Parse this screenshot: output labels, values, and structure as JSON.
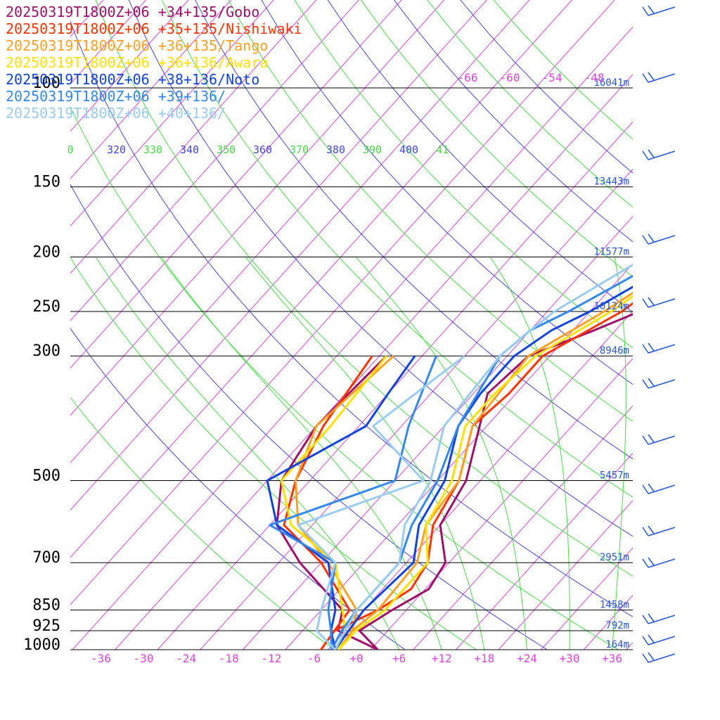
{
  "chart_data": {
    "type": "line",
    "title": "",
    "xlabel": "",
    "ylabel": "",
    "pressure_range": [
      1000,
      70
    ],
    "temperature_range": [
      -42,
      40
    ],
    "pressure_levels": [
      {
        "p": 100,
        "label": "100",
        "height": "16041m"
      },
      {
        "p": 150,
        "label": "150",
        "height": "13443m"
      },
      {
        "p": 200,
        "label": "200",
        "height": "11577m"
      },
      {
        "p": 250,
        "label": "250",
        "height": "10124m"
      },
      {
        "p": 300,
        "label": "300",
        "height": "8946m"
      },
      {
        "p": 500,
        "label": "500",
        "height": "5457m"
      },
      {
        "p": 700,
        "label": "700",
        "height": "2951m"
      },
      {
        "p": 850,
        "label": "850",
        "height": "1458m"
      },
      {
        "p": 925,
        "label": "925",
        "height": "792m"
      },
      {
        "p": 1000,
        "label": "1000",
        "height": "164m"
      }
    ],
    "temperature_ticks": [
      {
        "t": -36,
        "label": "-36"
      },
      {
        "t": -30,
        "label": "-30"
      },
      {
        "t": -24,
        "label": "-24"
      },
      {
        "t": -18,
        "label": "-18"
      },
      {
        "t": -12,
        "label": "-12"
      },
      {
        "t": -6,
        "label": "-6"
      },
      {
        "t": 0,
        "label": "+0"
      },
      {
        "t": 6,
        "label": "+6"
      },
      {
        "t": 12,
        "label": "+12"
      },
      {
        "t": 18,
        "label": "+18"
      },
      {
        "t": 24,
        "label": "+24"
      },
      {
        "t": 30,
        "label": "+30"
      },
      {
        "t": 36,
        "label": "+36"
      }
    ],
    "upper_temperature_labels": [
      "-66",
      "-60",
      "-54",
      "-48"
    ],
    "theta_labels": [
      {
        "v": "0",
        "color": "#44dd44"
      },
      {
        "v": "320",
        "color": "#4444dd"
      },
      {
        "v": "330",
        "color": "#44dd44"
      },
      {
        "v": "340",
        "color": "#4444dd"
      },
      {
        "v": "350",
        "color": "#44dd44"
      },
      {
        "v": "360",
        "color": "#4444dd"
      },
      {
        "v": "370",
        "color": "#44dd44"
      },
      {
        "v": "380",
        "color": "#4444dd"
      },
      {
        "v": "390",
        "color": "#44dd44"
      },
      {
        "v": "400",
        "color": "#4444dd"
      },
      {
        "v": "41",
        "color": "#44dd44"
      }
    ],
    "series": [
      {
        "name": "20250319T1800Z+06 +34+135/Gobo",
        "color": "#a0106a",
        "temperature": [
          [
            1000,
            3
          ],
          [
            925,
            -2
          ],
          [
            850,
            0
          ],
          [
            780,
            2.5
          ],
          [
            700,
            1.5
          ],
          [
            600,
            -4
          ],
          [
            500,
            -6
          ],
          [
            400,
            -11
          ],
          [
            350,
            -14
          ],
          [
            300,
            -13
          ],
          [
            270,
            -7
          ],
          [
            250,
            -3
          ],
          [
            200,
            -2
          ],
          [
            160,
            -2
          ],
          [
            150,
            0.5
          ],
          [
            100,
            11.5
          ],
          [
            70,
            19
          ],
          [
            65,
            21
          ]
        ],
        "dewpoint": [
          [
            1000,
            3
          ],
          [
            925,
            -5
          ],
          [
            850,
            -7
          ],
          [
            700,
            -19
          ],
          [
            600,
            -27
          ],
          [
            500,
            -32
          ],
          [
            400,
            -34
          ],
          [
            300,
            -33
          ]
        ]
      },
      {
        "name": "20250319T1800Z+06 +35+135/Nishiwaki",
        "color": "#ff3300",
        "temperature": [
          [
            1000,
            -5
          ],
          [
            925,
            -5.5
          ],
          [
            850,
            -2
          ],
          [
            780,
            0
          ],
          [
            700,
            -1
          ],
          [
            600,
            -5
          ],
          [
            500,
            -7
          ],
          [
            400,
            -12
          ],
          [
            350,
            -11
          ],
          [
            300,
            -11
          ],
          [
            250,
            -5.5
          ],
          [
            200,
            -2
          ],
          [
            150,
            3
          ],
          [
            100,
            13
          ],
          [
            70,
            22
          ],
          [
            65,
            25
          ]
        ],
        "dewpoint": [
          [
            1000,
            -5
          ],
          [
            925,
            -5.5
          ],
          [
            850,
            -6
          ],
          [
            700,
            -16
          ],
          [
            600,
            -26
          ],
          [
            500,
            -30
          ],
          [
            400,
            -33
          ],
          [
            300,
            -35
          ]
        ]
      },
      {
        "name": "20250319T1800Z+06 +36+135/Tango",
        "color": "#ffa020",
        "temperature": [
          [
            1000,
            -2.5
          ],
          [
            925,
            -3
          ],
          [
            850,
            -2
          ],
          [
            700,
            -2.5
          ],
          [
            600,
            -6
          ],
          [
            500,
            -7
          ],
          [
            400,
            -12
          ],
          [
            300,
            -13
          ],
          [
            250,
            -8
          ],
          [
            200,
            -3
          ],
          [
            150,
            2
          ],
          [
            100,
            14
          ],
          [
            70,
            24
          ]
        ],
        "dewpoint": [
          [
            1000,
            -2.5
          ],
          [
            925,
            -3
          ],
          [
            850,
            -5
          ],
          [
            700,
            -15
          ],
          [
            600,
            -24
          ],
          [
            500,
            -30
          ],
          [
            400,
            -34
          ],
          [
            300,
            -32
          ]
        ]
      },
      {
        "name": "20250319T1800Z+06 +36+136/Awara",
        "color": "#ffe000",
        "temperature": [
          [
            1000,
            -2.5
          ],
          [
            925,
            -2.5
          ],
          [
            850,
            -1
          ],
          [
            700,
            -1
          ],
          [
            600,
            -6
          ],
          [
            500,
            -8
          ],
          [
            400,
            -13
          ],
          [
            350,
            -13
          ],
          [
            300,
            -12
          ],
          [
            250,
            -7
          ],
          [
            200,
            -3
          ],
          [
            150,
            1
          ],
          [
            100,
            15
          ],
          [
            70,
            26
          ]
        ],
        "dewpoint": [
          [
            1000,
            -2.5
          ],
          [
            925,
            -4
          ],
          [
            850,
            -7
          ],
          [
            700,
            -14
          ],
          [
            600,
            -25
          ],
          [
            500,
            -32
          ],
          [
            400,
            -32
          ],
          [
            300,
            -33
          ]
        ]
      },
      {
        "name": "20250319T1800Z+06 +38+136/Noto",
        "color": "#1144dd",
        "temperature": [
          [
            1000,
            -3
          ],
          [
            925,
            -3.5
          ],
          [
            850,
            -4
          ],
          [
            770,
            -3.5
          ],
          [
            700,
            -3
          ],
          [
            600,
            -7
          ],
          [
            500,
            -9
          ],
          [
            400,
            -14
          ],
          [
            350,
            -15
          ],
          [
            300,
            -15
          ],
          [
            270,
            -13
          ],
          [
            250,
            -10
          ],
          [
            200,
            -3.5
          ],
          [
            150,
            4
          ],
          [
            100,
            17
          ],
          [
            70,
            29
          ]
        ],
        "dewpoint": [
          [
            1000,
            -3
          ],
          [
            925,
            -6
          ],
          [
            850,
            -8
          ],
          [
            700,
            -15
          ],
          [
            600,
            -27
          ],
          [
            500,
            -34
          ],
          [
            400,
            -27
          ],
          [
            350,
            -28
          ],
          [
            300,
            -29
          ]
        ]
      },
      {
        "name": "20250319T1800Z+06 +39+136/",
        "color": "#3388ee",
        "temperature": [
          [
            1000,
            -3.5
          ],
          [
            925,
            -4.5
          ],
          [
            850,
            -5
          ],
          [
            700,
            -5
          ],
          [
            600,
            -8
          ],
          [
            500,
            -10
          ],
          [
            400,
            -14
          ],
          [
            300,
            -17
          ],
          [
            270,
            -16
          ],
          [
            250,
            -13
          ],
          [
            200,
            -6
          ],
          [
            150,
            3
          ],
          [
            100,
            18
          ],
          [
            70,
            31
          ]
        ],
        "dewpoint": [
          [
            1000,
            -3.5
          ],
          [
            925,
            -6
          ],
          [
            850,
            -9
          ],
          [
            700,
            -14
          ],
          [
            600,
            -28
          ],
          [
            500,
            -16
          ],
          [
            400,
            -21
          ],
          [
            300,
            -26
          ]
        ]
      },
      {
        "name": "20250319T1800Z+06 +40+136/",
        "color": "#99ccee",
        "temperature": [
          [
            1000,
            -3
          ],
          [
            925,
            -4
          ],
          [
            850,
            -5
          ],
          [
            700,
            -5
          ],
          [
            600,
            -9
          ],
          [
            500,
            -11
          ],
          [
            400,
            -16
          ],
          [
            300,
            -17
          ],
          [
            270,
            -16
          ],
          [
            250,
            -15
          ],
          [
            200,
            -9
          ],
          [
            150,
            3
          ],
          [
            100,
            20
          ],
          [
            70,
            33
          ]
        ],
        "dewpoint": [
          [
            1000,
            -3
          ],
          [
            925,
            -8
          ],
          [
            850,
            -10
          ],
          [
            700,
            -14
          ],
          [
            600,
            -24
          ],
          [
            500,
            -12
          ],
          [
            400,
            -26
          ],
          [
            300,
            -22
          ]
        ]
      }
    ]
  }
}
